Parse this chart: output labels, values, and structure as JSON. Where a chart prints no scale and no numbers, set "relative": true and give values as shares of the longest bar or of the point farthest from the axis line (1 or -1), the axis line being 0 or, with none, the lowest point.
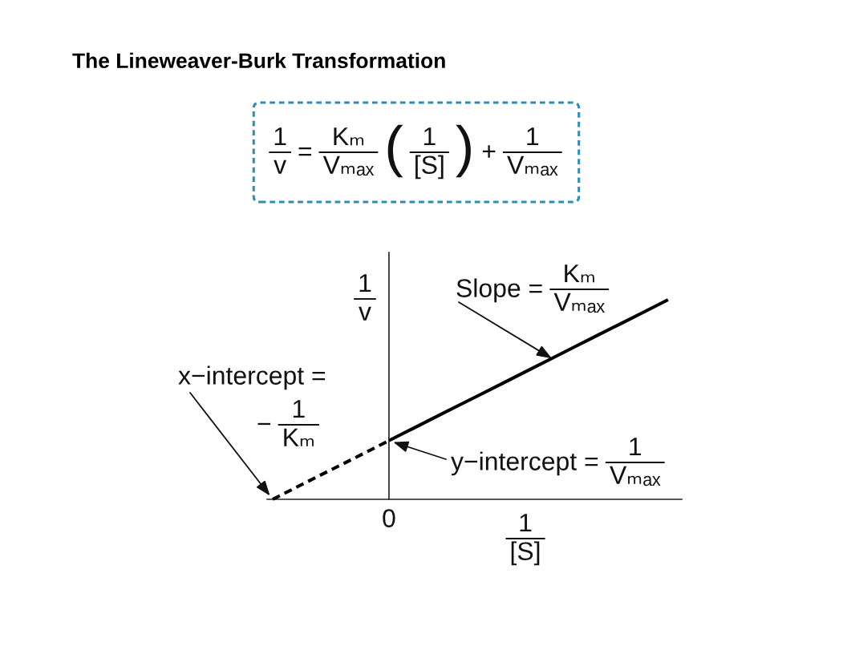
{
  "chart_data": {
    "type": "line",
    "title": "The Lineweaver-Burk Transformation",
    "xlabel": "1\n[S]",
    "ylabel": "1\nv",
    "relative": true,
    "categories": [
      null,
      null,
      null,
      null,
      null,
      null,
      null,
      null,
      null,
      null,
      null,
      null,
      null,
      null,
      null,
      null,
      null,
      null
    ],
    "series": [
      {
        "color": "#000000",
        "line_style": "dashed",
        "values": [
          0,
          0.059,
          0.118,
          0.176,
          0.235,
          0.294,
          null,
          null,
          null,
          null,
          null,
          null,
          null,
          null,
          null,
          null,
          null,
          null
        ]
      },
      {
        "color": "#000000",
        "line_style": "solid",
        "values": [
          null,
          null,
          null,
          null,
          null,
          0.294,
          0.353,
          0.412,
          0.471,
          0.529,
          0.588,
          0.647,
          0.706,
          0.765,
          0.824,
          0.882,
          0.941,
          1.0
        ]
      }
    ],
    "annotations": [
      "1\nv",
      "=",
      "Kₘ\nVₘₐₓ",
      "(",
      "1\n[S]",
      ")",
      "+",
      "1\nVₘₐₓ",
      "Slope =",
      "Kₘ\nVₘₐₓ",
      "x−intercept =",
      "−",
      "1\nKₘ",
      "y−intercept =",
      "1\nVₘₐₓ",
      "0"
    ]
  }
}
